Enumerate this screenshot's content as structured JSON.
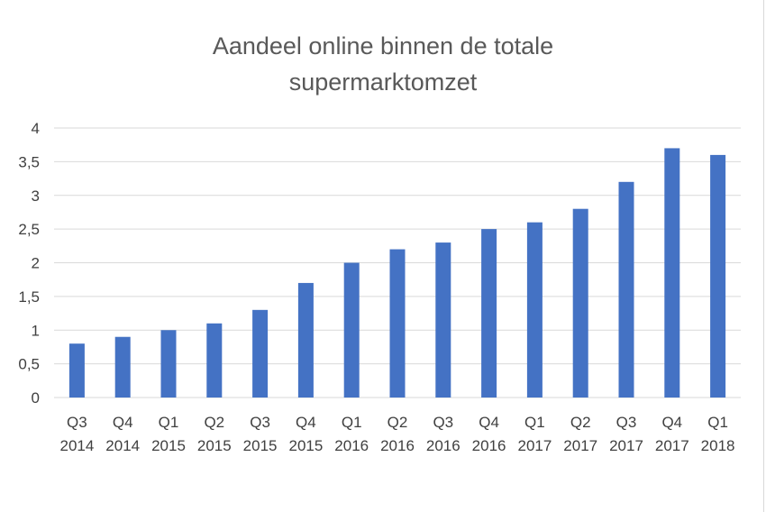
{
  "chart_data": {
    "type": "bar",
    "title_lines": [
      "Aandeel online binnen de totale",
      "supermarktomzet"
    ],
    "categories": [
      [
        "Q3",
        "2014"
      ],
      [
        "Q4",
        "2014"
      ],
      [
        "Q1",
        "2015"
      ],
      [
        "Q2",
        "2015"
      ],
      [
        "Q3",
        "2015"
      ],
      [
        "Q4",
        "2015"
      ],
      [
        "Q1",
        "2016"
      ],
      [
        "Q2",
        "2016"
      ],
      [
        "Q3",
        "2016"
      ],
      [
        "Q4",
        "2016"
      ],
      [
        "Q1",
        "2017"
      ],
      [
        "Q2",
        "2017"
      ],
      [
        "Q3",
        "2017"
      ],
      [
        "Q4",
        "2017"
      ],
      [
        "Q1",
        "2018"
      ]
    ],
    "values": [
      0.8,
      0.9,
      1.0,
      1.1,
      1.3,
      1.7,
      2.0,
      2.2,
      2.3,
      2.5,
      2.6,
      2.8,
      3.2,
      3.7,
      3.6
    ],
    "ylim": [
      0,
      4
    ],
    "yticks": [
      "0",
      "0,5",
      "1",
      "1,5",
      "2",
      "2,5",
      "3",
      "3,5",
      "4"
    ],
    "ytick_values": [
      0,
      0.5,
      1,
      1.5,
      2,
      2.5,
      3,
      3.5,
      4
    ],
    "xlabel": "",
    "ylabel": "",
    "grid": true,
    "legend": "none",
    "bar_color": "#4472c4",
    "grid_color": "#d9d9d9"
  }
}
